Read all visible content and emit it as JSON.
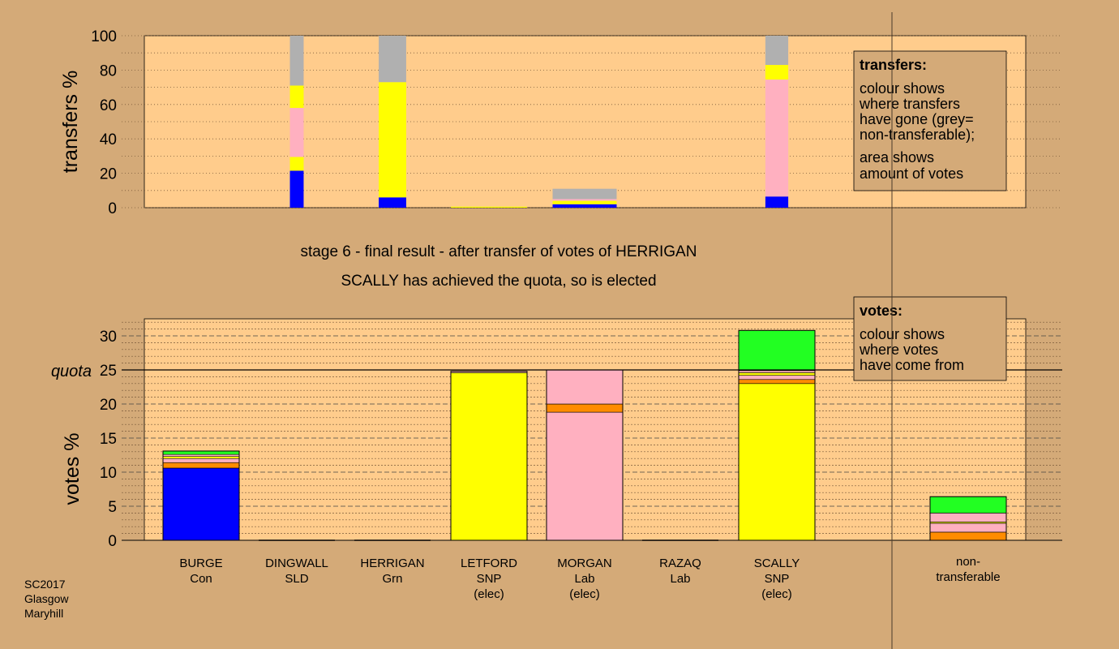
{
  "colors": {
    "page_bg": "#d4aa78",
    "plot_bg": "#ffcc8c",
    "Con": "#0000ff",
    "SNP": "#ffff00",
    "Lab": "#ffb0c0",
    "SLD": "#ff8c00",
    "Grn": "#22ff22",
    "nontransferable": "#b0b0b0"
  },
  "top_mid_text": {
    "line1": "stage 6 - final result - after transfer of votes of HERRIGAN",
    "line2": "SCALLY has achieved the quota, so is elected"
  },
  "corner_text": [
    "SC2017",
    "Glasgow",
    "Maryhill"
  ],
  "transfers_legend": {
    "title": "transfers:",
    "lines": [
      "colour shows",
      "where transfers",
      "have gone (grey=",
      "non-transferable);",
      "area shows",
      "amount of votes"
    ]
  },
  "votes_legend": {
    "title": "votes:",
    "lines": [
      "colour shows",
      "where votes",
      "have come from"
    ]
  },
  "chart_data": [
    {
      "type": "bar",
      "stacked": true,
      "ylabel": "transfers %",
      "ylim": [
        0,
        100
      ],
      "yticks": [
        0,
        20,
        40,
        60,
        80,
        100
      ],
      "grid": "dotted every 10",
      "categories": [
        "BURGE",
        "DINGWALL",
        "HERRIGAN",
        "LETFORD",
        "MORGAN",
        "RAZAQ",
        "SCALLY"
      ],
      "bars": [
        {
          "category": "DINGWALL",
          "width_share": 0.18,
          "segments": [
            {
              "party": "Con",
              "value": 21.5
            },
            {
              "party": "SNP",
              "value": 8
            },
            {
              "party": "Lab",
              "value": 28.5
            },
            {
              "party": "SNP",
              "value": 13
            },
            {
              "party": "nontransferable",
              "value": 29
            }
          ]
        },
        {
          "category": "HERRIGAN",
          "width_share": 0.36,
          "segments": [
            {
              "party": "Con",
              "value": 6
            },
            {
              "party": "SNP",
              "value": 67
            },
            {
              "party": "nontransferable",
              "value": 27
            }
          ]
        },
        {
          "category": "LETFORD",
          "width_share": 1.0,
          "segments": [
            {
              "party": "SNP",
              "value": 0.6
            }
          ]
        },
        {
          "category": "MORGAN",
          "width_share": 0.84,
          "segments": [
            {
              "party": "Con",
              "value": 2
            },
            {
              "party": "SNP",
              "value": 2
            },
            {
              "party": "Lab",
              "value": 1
            },
            {
              "party": "nontransferable",
              "value": 6
            }
          ]
        },
        {
          "category": "SCALLY",
          "width_share": 0.3,
          "segments": [
            {
              "party": "Con",
              "value": 6.5
            },
            {
              "party": "Lab",
              "value": 68
            },
            {
              "party": "SNP",
              "value": 8.5
            },
            {
              "party": "nontransferable",
              "value": 17
            }
          ]
        }
      ]
    },
    {
      "type": "bar",
      "stacked": true,
      "ylabel": "votes %",
      "ylim": [
        0,
        32.5
      ],
      "yticks": [
        0,
        5,
        10,
        15,
        20,
        25,
        30
      ],
      "quota": {
        "label": "quota",
        "value": 25
      },
      "grid": "dashed every 5, dotted every 1",
      "categories": [
        {
          "name": "BURGE",
          "party": "Con",
          "note": ""
        },
        {
          "name": "DINGWALL",
          "party": "SLD",
          "note": ""
        },
        {
          "name": "HERRIGAN",
          "party": "Grn",
          "note": ""
        },
        {
          "name": "LETFORD",
          "party": "SNP",
          "note": "(elec)"
        },
        {
          "name": "MORGAN",
          "party": "Lab",
          "note": "(elec)"
        },
        {
          "name": "RAZAQ",
          "party": "Lab",
          "note": ""
        },
        {
          "name": "SCALLY",
          "party": "SNP",
          "note": "(elec)"
        }
      ],
      "nontransferable_label": [
        "non-",
        "transferable"
      ],
      "stacks": [
        {
          "category": "BURGE",
          "segments": [
            {
              "party": "Con",
              "value": 10.6
            },
            {
              "party": "SLD",
              "value": 0.8
            },
            {
              "party": "Lab",
              "value": 0.6
            },
            {
              "party": "SNP",
              "value": 0.3
            },
            {
              "party": "Lab",
              "value": 0.3
            },
            {
              "party": "Grn",
              "value": 0.5
            }
          ]
        },
        {
          "category": "DINGWALL",
          "segments": []
        },
        {
          "category": "HERRIGAN",
          "segments": []
        },
        {
          "category": "LETFORD",
          "segments": [
            {
              "party": "SNP",
              "value": 24.6
            },
            {
              "party": "Lab",
              "value": 0.2
            }
          ]
        },
        {
          "category": "MORGAN",
          "segments": [
            {
              "party": "Lab",
              "value": 18.8
            },
            {
              "party": "SLD",
              "value": 1.2
            },
            {
              "party": "Lab",
              "value": 5.0
            }
          ]
        },
        {
          "category": "RAZAQ",
          "segments": []
        },
        {
          "category": "SCALLY",
          "segments": [
            {
              "party": "SNP",
              "value": 23.0
            },
            {
              "party": "SLD",
              "value": 0.6
            },
            {
              "party": "Lab",
              "value": 0.6
            },
            {
              "party": "SNP",
              "value": 0.4
            },
            {
              "party": "Lab",
              "value": 0.3
            },
            {
              "party": "Grn",
              "value": 5.9
            }
          ]
        },
        {
          "category": "non-transferable",
          "segments": [
            {
              "party": "SLD",
              "value": 1.2
            },
            {
              "party": "Lab",
              "value": 1.3
            },
            {
              "party": "SNP",
              "value": 0.2
            },
            {
              "party": "Lab",
              "value": 1.3
            },
            {
              "party": "Grn",
              "value": 2.4
            }
          ]
        }
      ]
    }
  ]
}
